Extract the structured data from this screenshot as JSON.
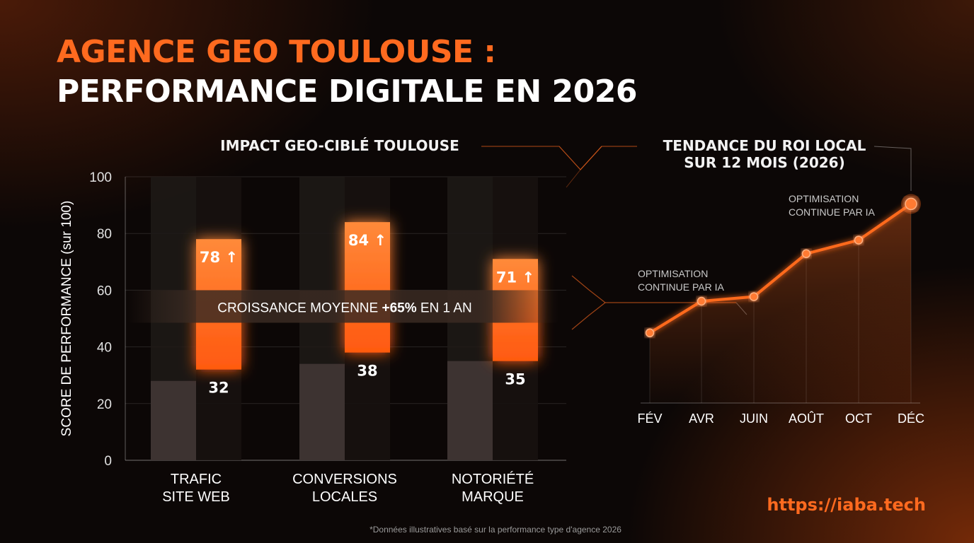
{
  "title": {
    "line1": "AGENCE GEO TOULOUSE :",
    "line2": "PERFORMANCE DIGITALE EN 2026"
  },
  "chart_data": [
    {
      "type": "bar",
      "title": "IMPACT GEO-CIBLÉ TOULOUSE",
      "ylabel": "SCORE DE PERFORMANCE (sur 100)",
      "ylim": [
        0,
        100
      ],
      "yticks": [
        "0",
        "20",
        "40",
        "60",
        "80",
        "100"
      ],
      "grid": true,
      "categories": [
        [
          "TRAFIC",
          "SITE WEB"
        ],
        [
          "CONVERSIONS",
          "LOCALES"
        ],
        [
          "NOTORIÉTÉ",
          "MARQUE"
        ]
      ],
      "series": [
        {
          "values": [
            28,
            34,
            35
          ]
        },
        {
          "range_low": [
            32,
            38,
            35
          ],
          "range_high": [
            78,
            84,
            71
          ]
        }
      ],
      "high_labels": [
        "78",
        "84",
        "71"
      ],
      "low_labels": [
        "32",
        "38",
        "35"
      ],
      "arrow_glyph": "↑",
      "banner": {
        "prefix": "CROISSANCE MOYENNE ",
        "highlight": "+65%",
        "suffix": " EN 1 AN",
        "value_level": 54
      },
      "colors": {
        "accent": "#ff6a1f",
        "bar_base": "#3d3331",
        "column_bg": "#1f1a18"
      }
    },
    {
      "type": "line",
      "title": "TENDANCE DU ROI LOCAL\nSUR 12 MOIS (2026)",
      "x": [
        "FÉV",
        "AVR",
        "JUIN",
        "AOÛT",
        "OCT",
        "DÉC"
      ],
      "values": [
        31,
        45,
        47,
        66,
        72,
        88
      ],
      "ylim": [
        0,
        100
      ],
      "annotations": [
        "OPTIMISATION\nCONTINUE PAR IA",
        "OPTIMISATION\nCONTINUE PAR IA"
      ],
      "colors": {
        "line": "#ff6a1f"
      }
    }
  ],
  "footer": {
    "url": "https://iaba.tech",
    "note": "*Données illustratives basé sur la performance type d'agence 2026"
  }
}
